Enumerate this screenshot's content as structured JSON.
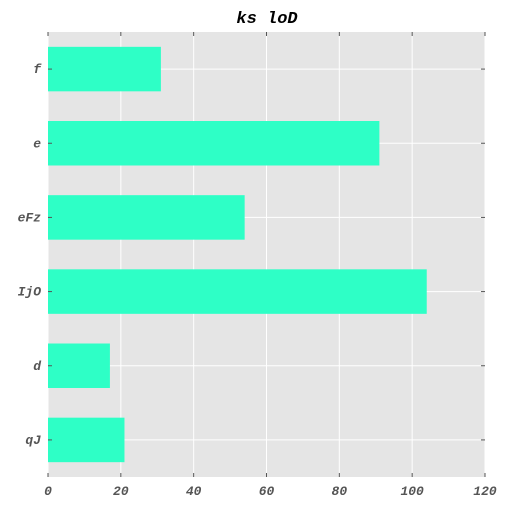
{
  "chart_data": {
    "type": "bar",
    "orientation": "horizontal",
    "title": "ks loD",
    "xlabel": "",
    "ylabel": "",
    "categories": [
      "qJ",
      "d",
      "IjO",
      "eFz",
      "e",
      "f"
    ],
    "values": [
      21,
      17,
      104,
      54,
      91,
      31
    ],
    "xlim": [
      0,
      120
    ],
    "x_ticks": [
      0,
      20,
      40,
      60,
      80,
      100,
      120
    ],
    "grid": true,
    "colors": {
      "bar": "#2effc6",
      "plot_background": "#e5e5e5",
      "grid": "#ffffff"
    }
  }
}
